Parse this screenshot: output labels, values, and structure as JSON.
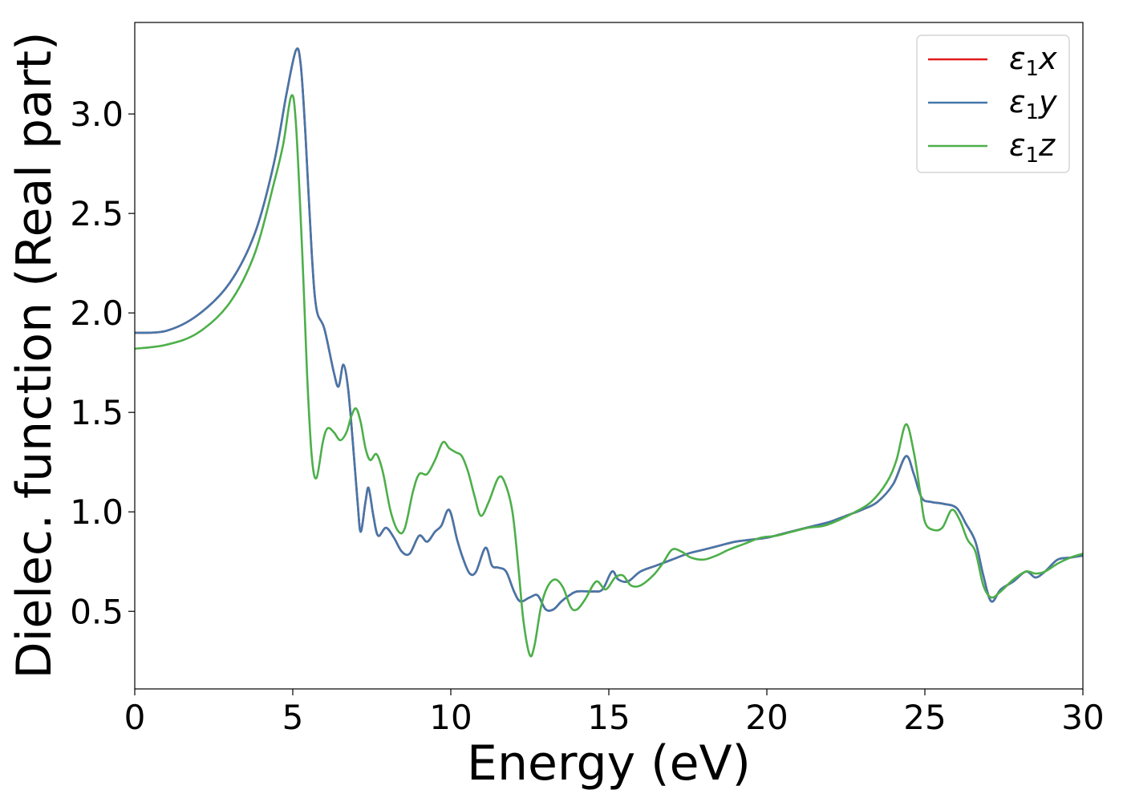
{
  "chart_data": {
    "type": "line",
    "xlabel": "Energy (eV)",
    "ylabel": "Dielec. function (Real part)",
    "xlim": [
      0,
      30
    ],
    "ylim": [
      0.11,
      3.46
    ],
    "xticks": [
      0,
      5,
      10,
      15,
      20,
      25,
      30
    ],
    "xtick_labels": [
      "0",
      "5",
      "10",
      "15",
      "20",
      "25",
      "30"
    ],
    "yticks": [
      0.5,
      1.0,
      1.5,
      2.0,
      2.5,
      3.0
    ],
    "ytick_labels": [
      "0.5",
      "1.0",
      "1.5",
      "2.0",
      "2.5",
      "3.0"
    ],
    "grid": false,
    "legend_position": "top-right",
    "series": [
      {
        "name": "ε₁x",
        "legend": {
          "base": "ε",
          "sub": "1",
          "suffix": "x"
        },
        "color": "#e41a1c",
        "points": [
          [
            0,
            1.9
          ],
          [
            1,
            1.91
          ],
          [
            2,
            1.99
          ],
          [
            3,
            2.15
          ],
          [
            3.8,
            2.4
          ],
          [
            4.4,
            2.75
          ],
          [
            4.8,
            3.1
          ],
          [
            5.1,
            3.32
          ],
          [
            5.25,
            3.25
          ],
          [
            5.4,
            2.9
          ],
          [
            5.6,
            2.3
          ],
          [
            5.75,
            2.02
          ],
          [
            6.0,
            1.92
          ],
          [
            6.3,
            1.7
          ],
          [
            6.45,
            1.63
          ],
          [
            6.6,
            1.74
          ],
          [
            6.75,
            1.62
          ],
          [
            6.9,
            1.35
          ],
          [
            7.05,
            1.05
          ],
          [
            7.15,
            0.9
          ],
          [
            7.3,
            1.05
          ],
          [
            7.4,
            1.12
          ],
          [
            7.55,
            0.98
          ],
          [
            7.7,
            0.88
          ],
          [
            7.95,
            0.92
          ],
          [
            8.2,
            0.87
          ],
          [
            8.45,
            0.8
          ],
          [
            8.7,
            0.79
          ],
          [
            9.0,
            0.88
          ],
          [
            9.25,
            0.85
          ],
          [
            9.5,
            0.9
          ],
          [
            9.7,
            0.93
          ],
          [
            9.95,
            1.01
          ],
          [
            10.2,
            0.86
          ],
          [
            10.4,
            0.76
          ],
          [
            10.6,
            0.69
          ],
          [
            10.8,
            0.7
          ],
          [
            11.1,
            0.82
          ],
          [
            11.3,
            0.73
          ],
          [
            11.5,
            0.72
          ],
          [
            11.75,
            0.7
          ],
          [
            12.0,
            0.6
          ],
          [
            12.2,
            0.55
          ],
          [
            12.5,
            0.57
          ],
          [
            12.75,
            0.58
          ],
          [
            13.0,
            0.51
          ],
          [
            13.25,
            0.51
          ],
          [
            13.5,
            0.55
          ],
          [
            13.75,
            0.58
          ],
          [
            14.0,
            0.6
          ],
          [
            14.5,
            0.6
          ],
          [
            14.8,
            0.61
          ],
          [
            15.1,
            0.7
          ],
          [
            15.3,
            0.66
          ],
          [
            15.6,
            0.65
          ],
          [
            16.0,
            0.7
          ],
          [
            16.5,
            0.73
          ],
          [
            17.0,
            0.76
          ],
          [
            17.5,
            0.79
          ],
          [
            18.0,
            0.81
          ],
          [
            18.5,
            0.83
          ],
          [
            19.0,
            0.85
          ],
          [
            19.5,
            0.86
          ],
          [
            20.0,
            0.87
          ],
          [
            20.5,
            0.89
          ],
          [
            21.0,
            0.91
          ],
          [
            21.5,
            0.93
          ],
          [
            22.0,
            0.95
          ],
          [
            22.5,
            0.98
          ],
          [
            23.0,
            1.01
          ],
          [
            23.5,
            1.05
          ],
          [
            24.0,
            1.14
          ],
          [
            24.4,
            1.28
          ],
          [
            24.65,
            1.19
          ],
          [
            24.9,
            1.07
          ],
          [
            25.2,
            1.05
          ],
          [
            25.6,
            1.04
          ],
          [
            26.0,
            1.02
          ],
          [
            26.3,
            0.94
          ],
          [
            26.6,
            0.85
          ],
          [
            26.85,
            0.68
          ],
          [
            27.1,
            0.55
          ],
          [
            27.4,
            0.61
          ],
          [
            27.8,
            0.65
          ],
          [
            28.2,
            0.7
          ],
          [
            28.5,
            0.67
          ],
          [
            28.8,
            0.7
          ],
          [
            29.2,
            0.76
          ],
          [
            29.6,
            0.77
          ],
          [
            30.0,
            0.78
          ]
        ]
      },
      {
        "name": "ε₁y",
        "legend": {
          "base": "ε",
          "sub": "1",
          "suffix": "y"
        },
        "color": "#4477aa",
        "points": [
          [
            0,
            1.9
          ],
          [
            1,
            1.91
          ],
          [
            2,
            1.99
          ],
          [
            3,
            2.15
          ],
          [
            3.8,
            2.4
          ],
          [
            4.4,
            2.75
          ],
          [
            4.8,
            3.1
          ],
          [
            5.1,
            3.32
          ],
          [
            5.25,
            3.25
          ],
          [
            5.4,
            2.9
          ],
          [
            5.6,
            2.3
          ],
          [
            5.75,
            2.02
          ],
          [
            6.0,
            1.92
          ],
          [
            6.3,
            1.7
          ],
          [
            6.45,
            1.63
          ],
          [
            6.6,
            1.74
          ],
          [
            6.75,
            1.62
          ],
          [
            6.9,
            1.35
          ],
          [
            7.05,
            1.05
          ],
          [
            7.15,
            0.9
          ],
          [
            7.3,
            1.05
          ],
          [
            7.4,
            1.12
          ],
          [
            7.55,
            0.98
          ],
          [
            7.7,
            0.88
          ],
          [
            7.95,
            0.92
          ],
          [
            8.2,
            0.87
          ],
          [
            8.45,
            0.8
          ],
          [
            8.7,
            0.79
          ],
          [
            9.0,
            0.88
          ],
          [
            9.25,
            0.85
          ],
          [
            9.5,
            0.9
          ],
          [
            9.7,
            0.93
          ],
          [
            9.95,
            1.01
          ],
          [
            10.2,
            0.86
          ],
          [
            10.4,
            0.76
          ],
          [
            10.6,
            0.69
          ],
          [
            10.8,
            0.7
          ],
          [
            11.1,
            0.82
          ],
          [
            11.3,
            0.73
          ],
          [
            11.5,
            0.72
          ],
          [
            11.75,
            0.7
          ],
          [
            12.0,
            0.6
          ],
          [
            12.2,
            0.55
          ],
          [
            12.5,
            0.57
          ],
          [
            12.75,
            0.58
          ],
          [
            13.0,
            0.51
          ],
          [
            13.25,
            0.51
          ],
          [
            13.5,
            0.55
          ],
          [
            13.75,
            0.58
          ],
          [
            14.0,
            0.6
          ],
          [
            14.5,
            0.6
          ],
          [
            14.8,
            0.61
          ],
          [
            15.1,
            0.7
          ],
          [
            15.3,
            0.66
          ],
          [
            15.6,
            0.65
          ],
          [
            16.0,
            0.7
          ],
          [
            16.5,
            0.73
          ],
          [
            17.0,
            0.76
          ],
          [
            17.5,
            0.79
          ],
          [
            18.0,
            0.81
          ],
          [
            18.5,
            0.83
          ],
          [
            19.0,
            0.85
          ],
          [
            19.5,
            0.86
          ],
          [
            20.0,
            0.87
          ],
          [
            20.5,
            0.89
          ],
          [
            21.0,
            0.91
          ],
          [
            21.5,
            0.93
          ],
          [
            22.0,
            0.95
          ],
          [
            22.5,
            0.98
          ],
          [
            23.0,
            1.01
          ],
          [
            23.5,
            1.05
          ],
          [
            24.0,
            1.14
          ],
          [
            24.4,
            1.28
          ],
          [
            24.65,
            1.19
          ],
          [
            24.9,
            1.07
          ],
          [
            25.2,
            1.05
          ],
          [
            25.6,
            1.04
          ],
          [
            26.0,
            1.02
          ],
          [
            26.3,
            0.94
          ],
          [
            26.6,
            0.85
          ],
          [
            26.85,
            0.68
          ],
          [
            27.1,
            0.55
          ],
          [
            27.4,
            0.61
          ],
          [
            27.8,
            0.65
          ],
          [
            28.2,
            0.7
          ],
          [
            28.5,
            0.67
          ],
          [
            28.8,
            0.7
          ],
          [
            29.2,
            0.76
          ],
          [
            29.6,
            0.77
          ],
          [
            30.0,
            0.78
          ]
        ]
      },
      {
        "name": "ε₁z",
        "legend": {
          "base": "ε",
          "sub": "1",
          "suffix": "z"
        },
        "color": "#4daf4a",
        "points": [
          [
            0,
            1.82
          ],
          [
            1,
            1.84
          ],
          [
            2,
            1.9
          ],
          [
            3,
            2.05
          ],
          [
            3.8,
            2.3
          ],
          [
            4.4,
            2.65
          ],
          [
            4.7,
            2.85
          ],
          [
            4.95,
            3.09
          ],
          [
            5.1,
            2.95
          ],
          [
            5.3,
            2.3
          ],
          [
            5.45,
            1.7
          ],
          [
            5.6,
            1.28
          ],
          [
            5.75,
            1.17
          ],
          [
            5.95,
            1.35
          ],
          [
            6.1,
            1.42
          ],
          [
            6.3,
            1.4
          ],
          [
            6.5,
            1.36
          ],
          [
            6.7,
            1.4
          ],
          [
            6.85,
            1.48
          ],
          [
            7.0,
            1.52
          ],
          [
            7.15,
            1.45
          ],
          [
            7.3,
            1.32
          ],
          [
            7.45,
            1.26
          ],
          [
            7.65,
            1.29
          ],
          [
            7.85,
            1.2
          ],
          [
            8.1,
            1.0
          ],
          [
            8.35,
            0.9
          ],
          [
            8.55,
            0.92
          ],
          [
            8.8,
            1.1
          ],
          [
            9.0,
            1.19
          ],
          [
            9.25,
            1.19
          ],
          [
            9.5,
            1.26
          ],
          [
            9.75,
            1.35
          ],
          [
            9.95,
            1.32
          ],
          [
            10.15,
            1.3
          ],
          [
            10.35,
            1.28
          ],
          [
            10.55,
            1.2
          ],
          [
            10.75,
            1.08
          ],
          [
            10.95,
            0.98
          ],
          [
            11.2,
            1.05
          ],
          [
            11.5,
            1.17
          ],
          [
            11.7,
            1.15
          ],
          [
            11.95,
            1.0
          ],
          [
            12.15,
            0.7
          ],
          [
            12.3,
            0.45
          ],
          [
            12.5,
            0.28
          ],
          [
            12.65,
            0.33
          ],
          [
            12.85,
            0.52
          ],
          [
            13.05,
            0.62
          ],
          [
            13.3,
            0.66
          ],
          [
            13.55,
            0.62
          ],
          [
            13.8,
            0.52
          ],
          [
            14.0,
            0.51
          ],
          [
            14.25,
            0.56
          ],
          [
            14.6,
            0.65
          ],
          [
            14.9,
            0.61
          ],
          [
            15.2,
            0.67
          ],
          [
            15.45,
            0.68
          ],
          [
            15.7,
            0.63
          ],
          [
            16.0,
            0.63
          ],
          [
            16.4,
            0.68
          ],
          [
            16.7,
            0.74
          ],
          [
            17.0,
            0.81
          ],
          [
            17.3,
            0.8
          ],
          [
            17.6,
            0.77
          ],
          [
            18.0,
            0.76
          ],
          [
            18.4,
            0.78
          ],
          [
            18.8,
            0.81
          ],
          [
            19.3,
            0.84
          ],
          [
            19.8,
            0.87
          ],
          [
            20.3,
            0.88
          ],
          [
            20.8,
            0.9
          ],
          [
            21.3,
            0.92
          ],
          [
            21.8,
            0.93
          ],
          [
            22.3,
            0.96
          ],
          [
            22.8,
            1.0
          ],
          [
            23.3,
            1.05
          ],
          [
            23.8,
            1.15
          ],
          [
            24.1,
            1.26
          ],
          [
            24.4,
            1.44
          ],
          [
            24.65,
            1.3
          ],
          [
            24.85,
            1.1
          ],
          [
            25.0,
            0.95
          ],
          [
            25.25,
            0.91
          ],
          [
            25.55,
            0.92
          ],
          [
            25.85,
            1.01
          ],
          [
            26.1,
            0.96
          ],
          [
            26.35,
            0.86
          ],
          [
            26.6,
            0.8
          ],
          [
            26.85,
            0.63
          ],
          [
            27.1,
            0.57
          ],
          [
            27.4,
            0.6
          ],
          [
            27.8,
            0.66
          ],
          [
            28.2,
            0.7
          ],
          [
            28.5,
            0.69
          ],
          [
            28.8,
            0.7
          ],
          [
            29.2,
            0.74
          ],
          [
            29.6,
            0.77
          ],
          [
            30.0,
            0.79
          ]
        ]
      }
    ]
  }
}
